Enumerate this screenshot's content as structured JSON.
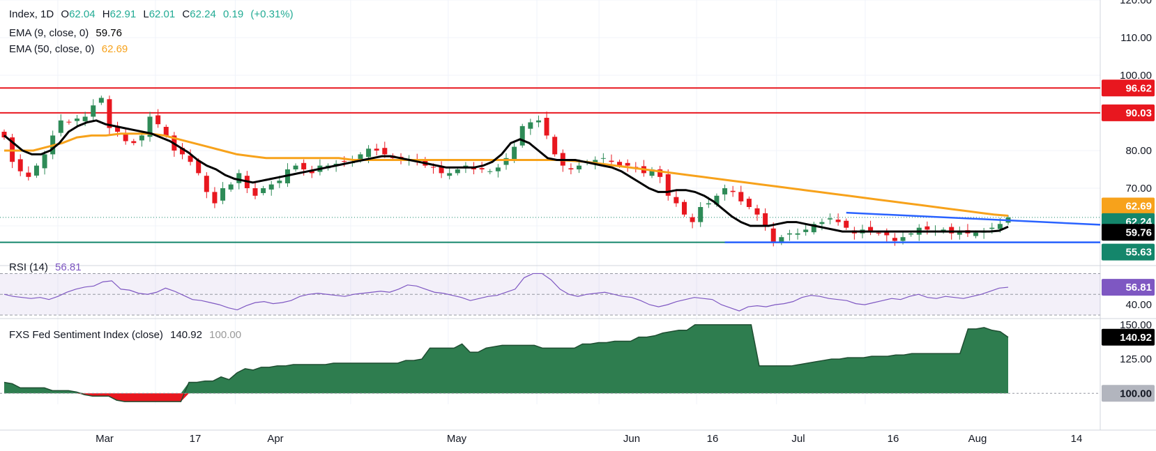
{
  "header": {
    "symbol": "Index, 1D",
    "ohlc": {
      "o_label": "O",
      "o": "62.04",
      "h_label": "H",
      "h": "62.91",
      "l_label": "L",
      "l": "62.01",
      "c_label": "C",
      "c": "62.24",
      "change": "0.19",
      "change_pct": "(+0.31%)"
    },
    "ema9": {
      "label": "EMA (9, close, 0)",
      "value": "59.76"
    },
    "ema50": {
      "label": "EMA (50, close, 0)",
      "value": "62.69"
    }
  },
  "rsi": {
    "label": "RSI (14)",
    "value": "56.81"
  },
  "sentiment": {
    "label": "FXS Fed Sentiment Index (close)",
    "value": "140.92",
    "ref": "100.00"
  },
  "colors": {
    "up": "#2e8b57",
    "down": "#e8171f",
    "ema9": "#000000",
    "ema50": "#f7a21b",
    "resistance": "#e8171f",
    "support": "#14866b",
    "triangle": "#2962ff",
    "rsi": "#7e57c2",
    "sentiment_pos": "#2e7d4f",
    "sentiment_neg": "#e8171f",
    "price_tag": "#14866b"
  },
  "chart_data": [
    {
      "type": "candlestick",
      "title": "Index, 1D",
      "x_ticks": [
        "Mar",
        "17",
        "Apr",
        "May",
        "Jun",
        "16",
        "Jul",
        "16",
        "Aug",
        "14"
      ],
      "y_ticks": [
        "120.00",
        "110.00",
        "100.00",
        "80.00",
        "70.00"
      ],
      "ylim": [
        50,
        120
      ],
      "close": [
        83.5,
        77,
        74.5,
        73,
        76,
        79,
        84,
        88,
        87.5,
        88.5,
        89,
        92,
        94,
        86,
        85,
        82.5,
        82,
        84,
        89,
        87,
        84,
        80,
        79,
        77,
        74,
        69,
        66,
        70,
        71,
        74,
        70,
        68,
        70,
        71,
        72,
        75,
        76,
        75,
        74,
        76,
        76,
        76.5,
        77,
        77,
        79,
        80.5,
        80,
        79,
        78,
        78,
        77.5,
        77,
        76,
        75.5,
        74,
        74,
        75,
        76,
        75,
        75,
        74.5,
        75.5,
        78,
        81,
        86.5,
        87.5,
        88,
        84,
        79,
        76,
        75,
        76,
        77,
        77.5,
        78,
        77,
        76,
        76,
        75.5,
        74,
        75,
        73,
        68,
        66,
        63,
        61,
        65,
        66,
        68,
        70,
        69,
        66.5,
        65,
        63,
        60,
        55.5,
        57,
        58,
        58,
        59,
        60.5,
        61,
        62,
        61,
        59.5,
        58,
        59,
        58.5,
        58,
        57.5,
        56,
        57,
        58,
        59.5,
        59,
        58.5,
        59,
        58,
        58.5,
        58,
        58.2,
        58.5,
        59.5,
        60.5,
        62.24
      ],
      "ema9": [
        84,
        82,
        80,
        79,
        79,
        80,
        82,
        85,
        86.5,
        87.5,
        88,
        87,
        86.5,
        86,
        85.5,
        85,
        84.5,
        83.5,
        82.5,
        81,
        79.5,
        77.5,
        76,
        75,
        73.5,
        72.5,
        72,
        71.5,
        72,
        72.5,
        73,
        73.5,
        74,
        74.5,
        75,
        75.5,
        76,
        76.5,
        77,
        77.5,
        78,
        78.5,
        78.5,
        78,
        77.5,
        77,
        76.5,
        76,
        75.5,
        75.5,
        75.5,
        75.5,
        76,
        77,
        79,
        82,
        83,
        82,
        80,
        78,
        77.5,
        77.5,
        77.5,
        77,
        76.5,
        76,
        75.5,
        74.5,
        73,
        71.5,
        70,
        69,
        69,
        69.5,
        69.5,
        69,
        68,
        66.5,
        64.5,
        62.5,
        61,
        60,
        60,
        60,
        60.5,
        61,
        61,
        60.5,
        60,
        59.5,
        59,
        58.5,
        58.5,
        58.5,
        58.5,
        58.5,
        58.5,
        58.5,
        58.5,
        58.5,
        58.5,
        58.5,
        58.5,
        58.5,
        58.5,
        58.5,
        58.5,
        58.5,
        58.7,
        59.76
      ],
      "ema50": [
        80,
        80,
        80,
        81,
        82,
        83.5,
        84,
        84,
        84.5,
        84.5,
        84.5,
        84,
        83,
        82,
        81,
        80,
        79,
        78.5,
        78,
        78,
        78,
        78,
        78,
        78,
        77.5,
        77.5,
        77.5,
        77.5,
        77.5,
        77.5,
        77.5,
        77.5,
        77.5,
        77.5,
        77.5,
        77.5,
        77.5,
        77.5,
        77.5,
        77.3,
        77,
        76.5,
        76,
        75.5,
        75,
        74.5,
        74,
        73.5,
        73,
        72.5,
        72,
        71.5,
        71,
        70.5,
        70,
        69.5,
        69,
        68.5,
        68,
        67.5,
        67,
        66.5,
        66,
        65.5,
        65,
        64.5,
        64,
        63.5,
        63,
        62.69
      ],
      "resistance_levels": [
        96.62,
        90.03
      ],
      "support_level": 55.63,
      "triangle_upper": [
        [
          104,
          63.5
        ],
        [
          128,
          61.0
        ]
      ],
      "triangle_lower": [
        [
          89,
          55.63
        ],
        [
          128,
          55.63
        ]
      ],
      "price_labels": [
        "96.62",
        "90.03",
        "62.69",
        "62.24",
        "59.76",
        "55.63"
      ]
    },
    {
      "type": "line",
      "title": "RSI (14)",
      "y_ticks": [
        "40.00"
      ],
      "ylim": [
        30,
        75
      ],
      "bands": [
        70,
        50,
        30
      ],
      "values": [
        50,
        48,
        47,
        46,
        47,
        45,
        48,
        52,
        55,
        57,
        58,
        62,
        63,
        55,
        54,
        51,
        50,
        52,
        56,
        53,
        49,
        45,
        44,
        42,
        40,
        37,
        35,
        39,
        42,
        43,
        41,
        42,
        44,
        48,
        50,
        51,
        50,
        49,
        48,
        50,
        51,
        52,
        53,
        52,
        55,
        59,
        58,
        55,
        52,
        51,
        49,
        47,
        44,
        46,
        48,
        49,
        52,
        55,
        66,
        70,
        70,
        64,
        55,
        50,
        48,
        50,
        51,
        52,
        50,
        48,
        47,
        44,
        40,
        38,
        40,
        43,
        45,
        47,
        46,
        45,
        40,
        37,
        34,
        38,
        39,
        38,
        40,
        41,
        43,
        47,
        49,
        48,
        46,
        45,
        44,
        41,
        40,
        42,
        44,
        46,
        45,
        48,
        50,
        47,
        46,
        48,
        47,
        46,
        48,
        50,
        53,
        56,
        56.81
      ]
    },
    {
      "type": "area",
      "title": "FXS Fed Sentiment Index (close)",
      "y_ticks": [
        "150.00",
        "125.00"
      ],
      "ylim": [
        92,
        152
      ],
      "baseline": 100,
      "values": [
        108,
        107,
        104,
        104,
        104,
        104,
        102,
        102,
        102,
        101,
        99,
        98,
        98,
        98,
        95,
        94,
        94,
        94,
        94,
        94,
        94,
        94,
        94,
        108,
        108,
        109,
        109,
        112,
        110,
        115,
        118,
        117,
        119,
        119,
        120,
        120,
        121,
        121,
        121,
        121,
        121,
        122,
        122,
        122,
        122,
        122,
        122,
        122,
        122,
        122,
        124,
        124,
        125,
        133,
        133,
        133,
        133,
        136,
        130,
        130,
        133,
        134,
        135,
        135,
        135,
        135,
        135,
        133,
        133,
        133,
        133,
        133,
        136,
        136,
        137,
        137,
        138,
        138,
        138,
        141,
        141,
        142,
        144,
        145,
        146,
        146,
        150,
        150,
        150,
        150,
        150,
        150,
        150,
        150,
        120,
        120,
        120,
        120,
        120,
        121,
        122,
        123,
        124,
        125,
        125,
        126,
        126,
        126,
        127,
        127,
        127,
        128,
        128,
        129,
        129,
        129,
        129,
        129,
        129,
        129,
        147,
        147,
        148,
        146,
        145,
        140.92
      ]
    }
  ]
}
